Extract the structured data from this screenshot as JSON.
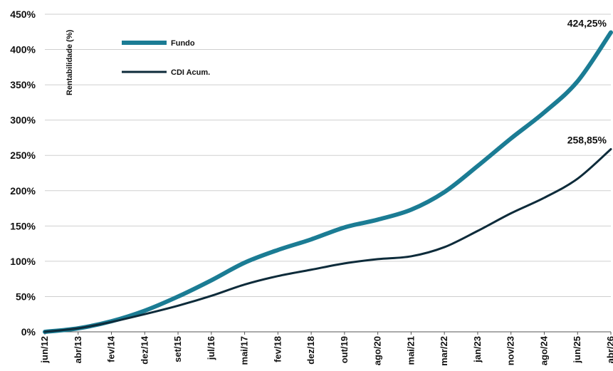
{
  "chart_data": {
    "type": "line",
    "ylabel": "Rentabilidade (%)",
    "xlabel": "",
    "ylim": [
      0,
      450
    ],
    "yticks": [
      "0%",
      "50%",
      "100%",
      "150%",
      "200%",
      "250%",
      "300%",
      "350%",
      "400%",
      "450%"
    ],
    "categories": [
      "jun/12",
      "abr/13",
      "fev/14",
      "dez/14",
      "set/15",
      "jul/16",
      "mai/17",
      "fev/18",
      "dez/18",
      "out/19",
      "ago/20",
      "mai/21",
      "mar/22",
      "jan/23",
      "nov/23",
      "ago/24",
      "jun/25",
      "abr/26"
    ],
    "legend_position": "top-left",
    "grid": true,
    "series": [
      {
        "name": "Fundo",
        "color": "#1b7c94",
        "values": [
          0,
          5,
          15,
          30,
          50,
          73,
          98,
          116,
          131,
          148,
          159,
          173,
          198,
          235,
          274,
          311,
          355,
          424.25
        ],
        "end_label": "424,25%"
      },
      {
        "name": "CDI Acum.",
        "color": "#0d2b3a",
        "values": [
          0,
          5,
          14,
          25,
          37,
          51,
          67,
          79,
          88,
          97,
          103,
          107,
          120,
          143,
          168,
          190,
          217,
          258.85
        ],
        "end_label": "258,85%"
      }
    ]
  }
}
